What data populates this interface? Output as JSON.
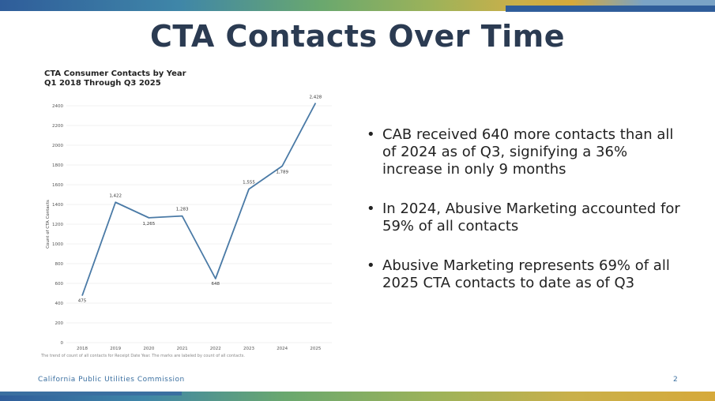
{
  "slide": {
    "title": "CTA Contacts Over Time",
    "footer": "California Public Utilities Commission",
    "page_number": "2"
  },
  "bullets": [
    "CAB received 640 more contacts than all of 2024 as of Q3, signifying a 36% increase in only 9 months",
    "In 2024, Abusive Marketing accounted for 59% of all contacts",
    "Abusive Marketing represents 69% of all 2025 CTA contacts to date as of Q3"
  ],
  "chart_data": {
    "type": "line",
    "title": "CTA Consumer Contacts by Year",
    "subtitle": "Q1 2018 Through Q3 2025",
    "xlabel": "",
    "ylabel": "Count of CTA Contacts",
    "categories": [
      "2018",
      "2019",
      "2020",
      "2021",
      "2022",
      "2023",
      "2024",
      "2025"
    ],
    "values": [
      475,
      1422,
      1265,
      1283,
      648,
      1555,
      1789,
      2428
    ],
    "value_labels": [
      "475",
      "1,422",
      "1,265",
      "1,283",
      "648",
      "1,555",
      "1,789",
      "2,428"
    ],
    "yticks": [
      0,
      200,
      400,
      600,
      800,
      1000,
      1200,
      1400,
      1600,
      1800,
      2000,
      2200,
      2400
    ],
    "ylim": [
      0,
      2400
    ],
    "grid": true,
    "line_color": "#4a7aa6",
    "footnote": "The trend of count of all contacts for Receipt Date Year. The marks are labeled by count of all contacts."
  }
}
